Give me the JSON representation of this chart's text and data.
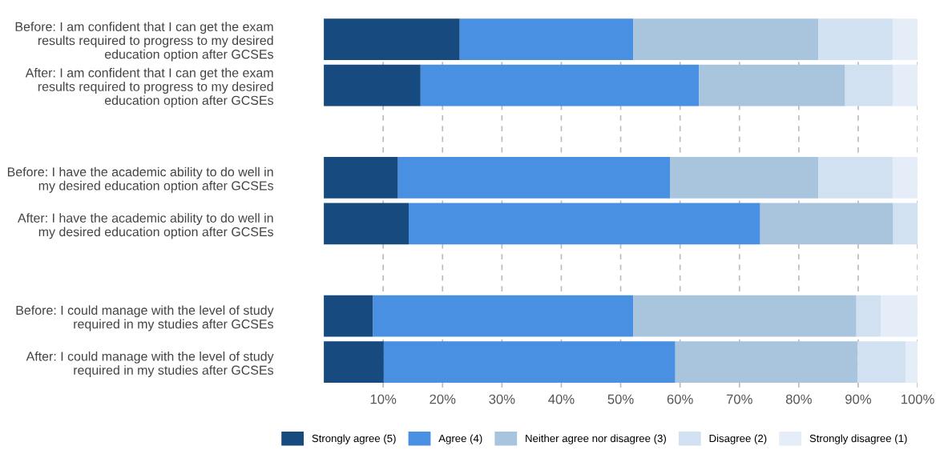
{
  "chart_data": {
    "type": "bar",
    "orientation": "horizontal",
    "stacked": true,
    "categories": [
      "Before: I am confident that I can get the exam\nresults required to progress to my desired\neducation option after GCSEs",
      "After: I am confident that I can get the exam\nresults required to progress to my desired\neducation option after GCSEs",
      null,
      "Before: I have the academic ability to do well in\nmy desired education option after GCSEs",
      "After: I have the academic ability to do well in\nmy desired education option after GCSEs",
      null,
      "Before: I could manage with the level of study\nrequired in my studies after GCSEs",
      "After: I could manage with the level of study\nrequired in my studies after GCSEs"
    ],
    "series": [
      {
        "name": "Strongly agree (5)",
        "color": "#174a7e",
        "values": [
          22.9,
          16.3,
          null,
          12.5,
          14.3,
          null,
          8.3,
          10.1
        ]
      },
      {
        "name": "Agree (4)",
        "color": "#4a90e2",
        "values": [
          29.2,
          46.9,
          null,
          45.8,
          59.2,
          null,
          43.8,
          49.1
        ]
      },
      {
        "name": "Neither agree nor disagree (3)",
        "color": "#a9c4dd",
        "values": [
          31.2,
          24.6,
          null,
          25.0,
          22.4,
          null,
          37.6,
          30.7
        ]
      },
      {
        "name": "Disagree (2)",
        "color": "#d2e1f1",
        "values": [
          12.5,
          8.1,
          null,
          12.5,
          4.1,
          null,
          4.1,
          8.1
        ]
      },
      {
        "name": "Strongly disagree (1)",
        "color": "#e4edf8",
        "values": [
          4.2,
          4.1,
          null,
          4.2,
          0,
          null,
          6.2,
          2.0
        ]
      }
    ],
    "xlim": [
      0,
      100
    ],
    "xticks": [
      {
        "value": 10,
        "label": "10%"
      },
      {
        "value": 20,
        "label": "20%"
      },
      {
        "value": 30,
        "label": "30%"
      },
      {
        "value": 40,
        "label": "40%"
      },
      {
        "value": 50,
        "label": "50%"
      },
      {
        "value": 60,
        "label": "60%"
      },
      {
        "value": 70,
        "label": "70%"
      },
      {
        "value": 80,
        "label": "80%"
      },
      {
        "value": 90,
        "label": "90%"
      },
      {
        "value": 100,
        "label": "100%"
      }
    ],
    "grid": "x",
    "legend": "bottom"
  }
}
